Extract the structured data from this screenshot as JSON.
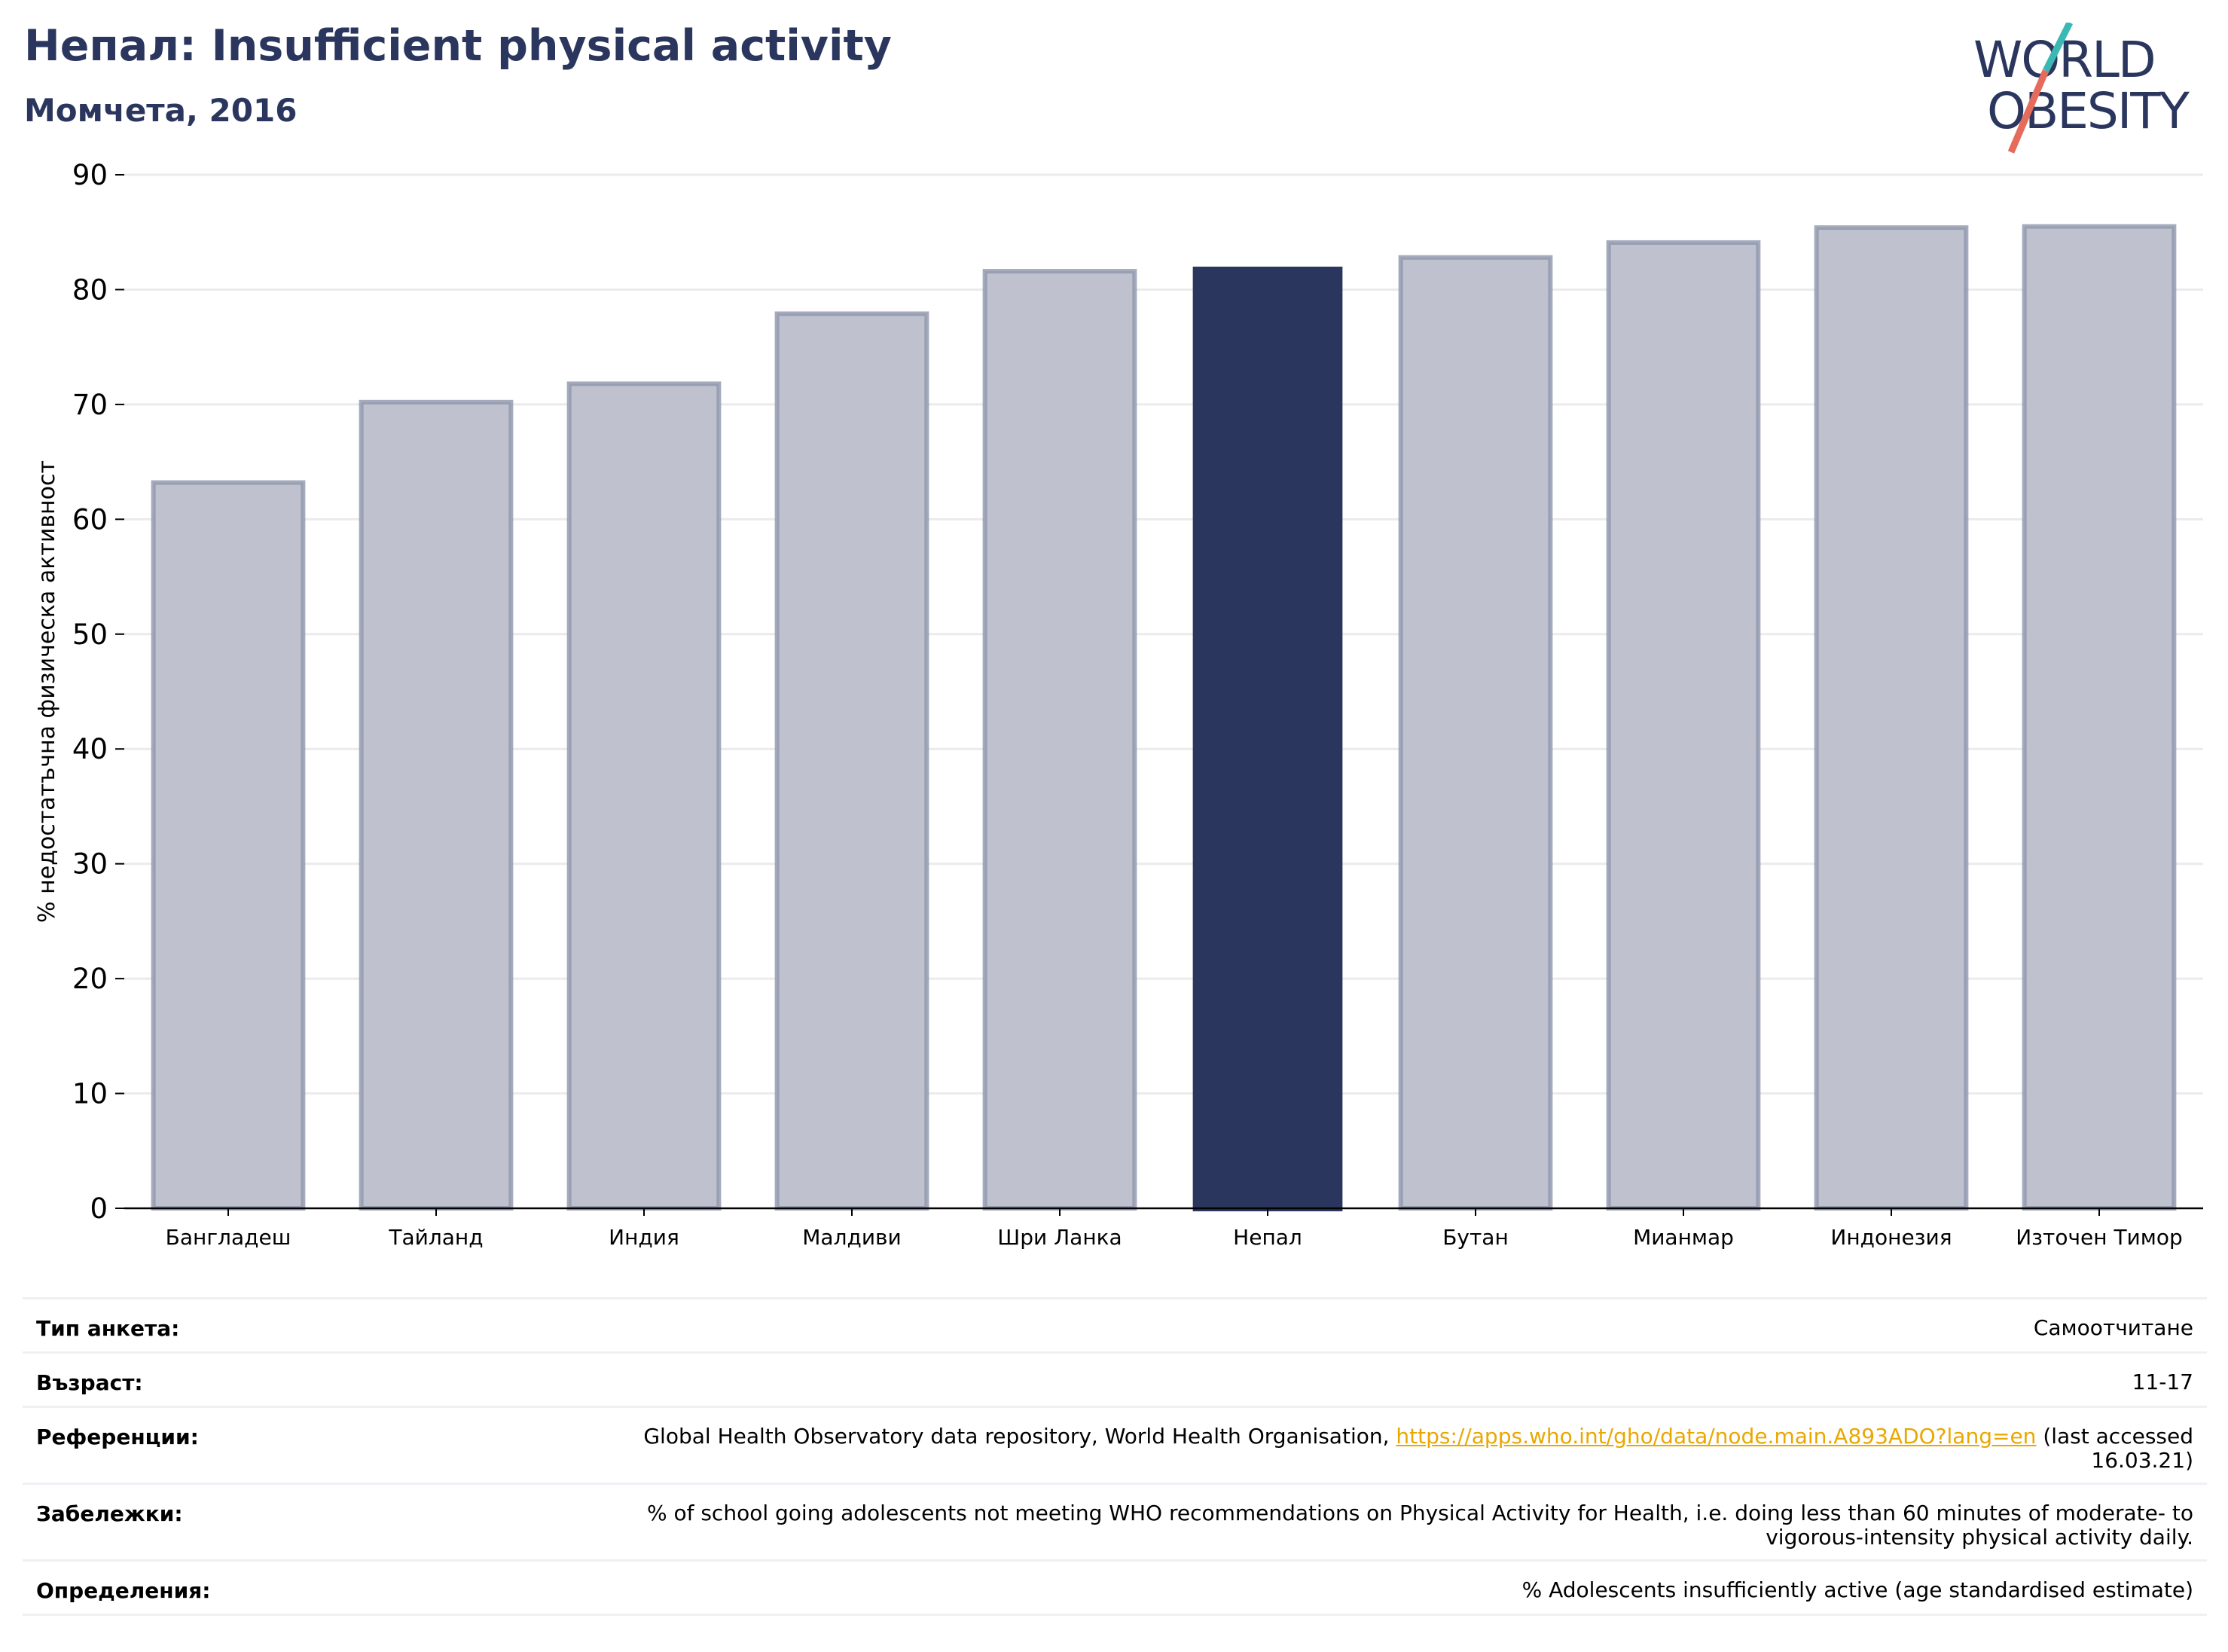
{
  "header": {
    "title": "Непал: Insufficient physical activity",
    "subtitle": "Момчета, 2016"
  },
  "logo": {
    "line1": "WORLD",
    "line2": "OBESITY",
    "colors": {
      "text": "#2b365e",
      "slash_top": "#3ab8b3",
      "slash_bottom": "#e56b5d"
    }
  },
  "chart_data": {
    "type": "bar",
    "categories": [
      "Бангладеш",
      "Тайланд",
      "Индия",
      "Малдиви",
      "Шри Ланка",
      "Непал",
      "Бутан",
      "Мианмар",
      "Индонезия",
      "Източен Тимор"
    ],
    "values": [
      63.2,
      70.2,
      71.8,
      77.9,
      81.6,
      82.0,
      82.8,
      84.1,
      85.4,
      85.5
    ],
    "highlight": "Непал",
    "title": "",
    "xlabel": "",
    "ylabel": "% недостатъчна физическа активност",
    "ylim": [
      0,
      90
    ],
    "yticks": [
      0,
      10,
      20,
      30,
      40,
      50,
      60,
      70,
      80,
      90
    ],
    "grid": true,
    "legend": "none",
    "colors": {
      "bar": "#bfc2ce",
      "bar_edge": "#8f96ad",
      "highlight": "#2b365e",
      "grid": "#ebebeb"
    }
  },
  "info": {
    "survey_type": {
      "label": "Тип анкета:",
      "value": "Самоотчитане"
    },
    "age": {
      "label": "Възраст:",
      "value": "11-17"
    },
    "references": {
      "label": "Референции:",
      "text_before": "Global Health Observatory data repository, World Health Organisation, ",
      "link": "https://apps.who.int/gho/data/node.main.A893ADO?lang=en",
      "text_after": " (last accessed 16.03.21)"
    },
    "notes": {
      "label": "Забележки:",
      "value": "% of school going adolescents not meeting WHO recommendations on Physical Activity for Health, i.e. doing less than 60 minutes of moderate- to vigorous-intensity physical activity daily."
    },
    "definitions": {
      "label": "Определения:",
      "value": "% Adolescents insufficiently active (age standardised estimate)"
    }
  }
}
